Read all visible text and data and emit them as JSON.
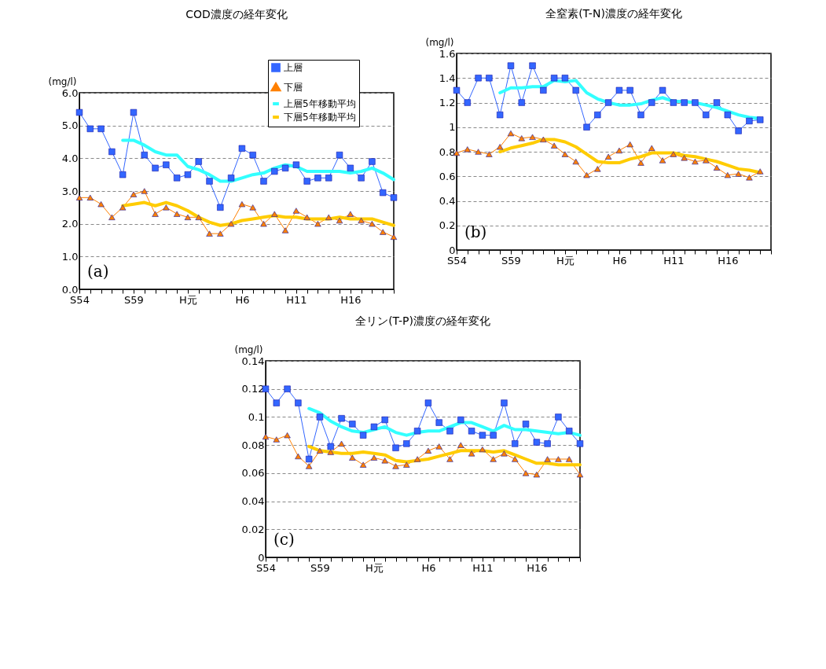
{
  "chart_data": [
    {
      "type": "line",
      "title": "COD濃度の経年変化",
      "ylabel": "(mg/l)",
      "categories": [
        "S54",
        null,
        null,
        null,
        null,
        "S59",
        null,
        null,
        null,
        null,
        "H元",
        null,
        null,
        null,
        null,
        "H6",
        null,
        null,
        null,
        null,
        "H11",
        null,
        null,
        null,
        null,
        "H16",
        null,
        null,
        null,
        null
      ],
      "series": [
        {
          "name": "上層",
          "color": "#3366ff",
          "marker": "square",
          "values": [
            5.4,
            4.9,
            4.9,
            4.2,
            3.5,
            5.4,
            4.1,
            3.7,
            3.8,
            3.4,
            3.5,
            3.9,
            3.3,
            2.5,
            3.4,
            4.3,
            4.1,
            3.3,
            3.6,
            3.7,
            3.8,
            3.3,
            3.4,
            3.4,
            4.1,
            3.7,
            3.4,
            3.9,
            2.95,
            2.8
          ]
        },
        {
          "name": "下層",
          "color": "#ff8000",
          "marker": "triangle",
          "values": [
            2.8,
            2.8,
            2.6,
            2.2,
            2.5,
            2.9,
            3.0,
            2.3,
            2.5,
            2.3,
            2.2,
            2.2,
            1.7,
            1.7,
            2.0,
            2.6,
            2.5,
            2.0,
            2.3,
            1.8,
            2.4,
            2.2,
            2.0,
            2.2,
            2.1,
            2.3,
            2.1,
            2.0,
            1.75,
            1.6
          ]
        },
        {
          "name": "上層5年移動平均",
          "color": "#33ffff",
          "marker": "none",
          "values": [
            null,
            null,
            null,
            null,
            4.55,
            4.55,
            4.4,
            4.2,
            4.1,
            4.1,
            3.75,
            3.65,
            3.5,
            3.3,
            3.3,
            3.4,
            3.5,
            3.55,
            3.7,
            3.8,
            3.75,
            3.6,
            3.6,
            3.6,
            3.6,
            3.55,
            3.6,
            3.7,
            3.55,
            3.35
          ]
        },
        {
          "name": "下層5年移動平均",
          "color": "#ffcc00",
          "marker": "none",
          "values": [
            null,
            null,
            null,
            null,
            2.55,
            2.6,
            2.65,
            2.55,
            2.65,
            2.55,
            2.4,
            2.2,
            2.05,
            1.95,
            2.0,
            2.1,
            2.15,
            2.2,
            2.25,
            2.2,
            2.2,
            2.15,
            2.15,
            2.15,
            2.2,
            2.15,
            2.15,
            2.15,
            2.05,
            1.95
          ]
        }
      ],
      "ylim": [
        0,
        6
      ],
      "yticks": [
        {
          "value": 0,
          "label": "0.0"
        },
        {
          "value": 1,
          "label": "1.0"
        },
        {
          "value": 2,
          "label": "2.0"
        },
        {
          "value": 3,
          "label": "3.0"
        },
        {
          "value": 4,
          "label": "4.0"
        },
        {
          "value": 5,
          "label": "5.0"
        },
        {
          "value": 6,
          "label": "6.0"
        }
      ],
      "grid": "y",
      "legend": "top right",
      "annotations": [
        "(a)"
      ]
    },
    {
      "type": "line",
      "title": "全窒素(T-N)濃度の経年変化",
      "ylabel": "(mg/l)",
      "categories": [
        "S54",
        null,
        null,
        null,
        null,
        "S59",
        null,
        null,
        null,
        null,
        "H元",
        null,
        null,
        null,
        null,
        "H6",
        null,
        null,
        null,
        null,
        "H11",
        null,
        null,
        null,
        null,
        "H16",
        null,
        null,
        null,
        null
      ],
      "series": [
        {
          "color": "#3366ff",
          "marker": "square",
          "values": [
            1.3,
            1.2,
            1.4,
            1.4,
            1.1,
            1.5,
            1.2,
            1.5,
            1.3,
            1.4,
            1.4,
            1.3,
            1.0,
            1.1,
            1.2,
            1.3,
            1.3,
            1.1,
            1.2,
            1.3,
            1.2,
            1.2,
            1.2,
            1.1,
            1.2,
            1.1,
            0.97,
            1.05,
            1.06,
            null
          ]
        },
        {
          "color": "#ff8000",
          "marker": "triangle",
          "values": [
            0.79,
            0.82,
            0.8,
            0.78,
            0.84,
            0.95,
            0.91,
            0.92,
            0.9,
            0.85,
            0.78,
            0.72,
            0.61,
            0.66,
            0.76,
            0.81,
            0.86,
            0.71,
            0.83,
            0.73,
            0.78,
            0.75,
            0.72,
            0.73,
            0.67,
            0.61,
            0.62,
            0.59,
            0.64,
            null
          ]
        },
        {
          "color": "#33ffff",
          "marker": "none",
          "values": [
            null,
            null,
            null,
            null,
            1.28,
            1.32,
            1.32,
            1.33,
            1.33,
            1.38,
            1.37,
            1.38,
            1.28,
            1.23,
            1.2,
            1.18,
            1.18,
            1.19,
            1.22,
            1.24,
            1.21,
            1.21,
            1.2,
            1.18,
            1.16,
            1.13,
            1.1,
            1.08,
            1.07,
            null
          ]
        },
        {
          "color": "#ffcc00",
          "marker": "none",
          "values": [
            null,
            null,
            null,
            null,
            0.8,
            0.83,
            0.85,
            0.87,
            0.9,
            0.9,
            0.88,
            0.84,
            0.78,
            0.72,
            0.71,
            0.71,
            0.74,
            0.76,
            0.79,
            0.79,
            0.79,
            0.77,
            0.76,
            0.74,
            0.72,
            0.69,
            0.66,
            0.65,
            0.63,
            null
          ]
        }
      ],
      "ylim": [
        0,
        1.6
      ],
      "yticks": [
        0,
        0.2,
        0.4,
        0.6,
        0.8,
        1,
        1.2,
        1.4,
        1.6
      ],
      "grid": "y",
      "annotations": [
        "(b)"
      ]
    },
    {
      "type": "line",
      "title": "全リン(T-P)濃度の経年変化",
      "ylabel": "(mg/l)",
      "categories": [
        "S54",
        null,
        null,
        null,
        null,
        "S59",
        null,
        null,
        null,
        null,
        "H元",
        null,
        null,
        null,
        null,
        "H6",
        null,
        null,
        null,
        null,
        "H11",
        null,
        null,
        null,
        null,
        "H16",
        null,
        null,
        null,
        null
      ],
      "series": [
        {
          "color": "#3366ff",
          "marker": "square",
          "values": [
            0.12,
            0.11,
            0.12,
            0.11,
            0.07,
            0.1,
            0.079,
            0.099,
            0.095,
            0.087,
            0.093,
            0.098,
            0.078,
            0.081,
            0.09,
            0.11,
            0.096,
            0.09,
            0.098,
            0.09,
            0.087,
            0.087,
            0.11,
            0.081,
            0.095,
            0.082,
            0.081,
            0.1,
            0.09,
            0.081
          ]
        },
        {
          "color": "#ff8000",
          "marker": "triangle",
          "values": [
            0.086,
            0.084,
            0.087,
            0.072,
            0.065,
            0.076,
            0.075,
            0.081,
            0.071,
            0.066,
            0.071,
            0.069,
            0.065,
            0.066,
            0.07,
            0.076,
            0.079,
            0.07,
            0.08,
            0.074,
            0.077,
            0.07,
            0.074,
            0.07,
            0.06,
            0.059,
            0.07,
            0.07,
            0.07,
            0.059
          ]
        },
        {
          "color": "#33ffff",
          "marker": "none",
          "values": [
            null,
            null,
            null,
            null,
            0.106,
            0.103,
            0.097,
            0.093,
            0.09,
            0.089,
            0.091,
            0.093,
            0.089,
            0.087,
            0.089,
            0.09,
            0.09,
            0.093,
            0.096,
            0.096,
            0.093,
            0.09,
            0.094,
            0.091,
            0.091,
            0.09,
            0.089,
            0.088,
            0.089,
            0.087
          ]
        },
        {
          "color": "#ffcc00",
          "marker": "none",
          "values": [
            null,
            null,
            null,
            null,
            0.079,
            0.076,
            0.075,
            0.074,
            0.074,
            0.075,
            0.074,
            0.073,
            0.069,
            0.068,
            0.069,
            0.07,
            0.072,
            0.074,
            0.076,
            0.076,
            0.076,
            0.075,
            0.076,
            0.073,
            0.07,
            0.067,
            0.067,
            0.066,
            0.066,
            0.066
          ]
        }
      ],
      "ylim": [
        0,
        0.14
      ],
      "yticks": [
        0,
        0.02,
        0.04,
        0.06,
        0.08,
        0.1,
        0.12,
        0.14
      ],
      "grid": "y",
      "annotations": [
        "(c)"
      ]
    }
  ]
}
